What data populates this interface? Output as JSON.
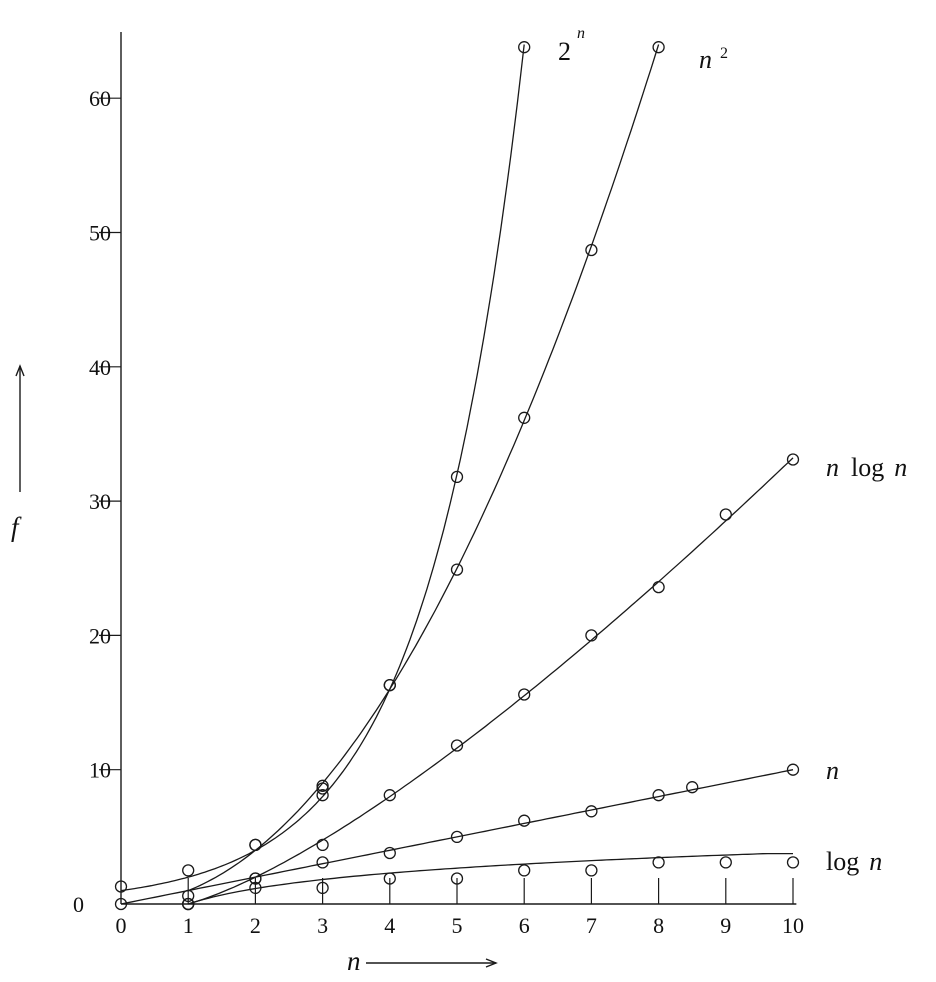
{
  "chart_data": {
    "type": "line",
    "title": "",
    "xlabel": "n",
    "ylabel": "f",
    "xlim": [
      0,
      10
    ],
    "ylim": [
      0,
      64
    ],
    "x_ticks": [
      "0",
      "1",
      "2",
      "3",
      "4",
      "5",
      "6",
      "7",
      "8",
      "9",
      "10"
    ],
    "y_ticks": [
      "0",
      "10",
      "20",
      "30",
      "40",
      "50",
      "60"
    ],
    "grid": false,
    "legend": "none",
    "series": [
      {
        "name": "2^n",
        "label_parts": [
          "2",
          "n"
        ],
        "curve_x": [
          0,
          1,
          2,
          3,
          4,
          5,
          6
        ],
        "points": [
          [
            0,
            1.3
          ],
          [
            1,
            2.5
          ],
          [
            2,
            4.4
          ],
          [
            3,
            8.6
          ],
          [
            3,
            8.1
          ],
          [
            4,
            16.3
          ],
          [
            5,
            31.8
          ],
          [
            6,
            63.8
          ]
        ]
      },
      {
        "name": "n^2",
        "label_parts": [
          "n",
          "2"
        ],
        "curve_x": [
          1,
          2,
          3,
          4,
          5,
          6,
          7,
          8
        ],
        "points": [
          [
            1,
            0
          ],
          [
            2,
            4.4
          ],
          [
            3,
            8.8
          ],
          [
            4,
            16.3
          ],
          [
            5,
            24.9
          ],
          [
            6,
            36.2
          ],
          [
            7,
            48.7
          ],
          [
            8,
            63.8
          ]
        ]
      },
      {
        "name": "n log n",
        "label_parts": [
          "n",
          "log",
          "n"
        ],
        "curve_x": [
          1,
          2,
          3,
          4,
          5,
          6,
          7,
          8,
          9,
          10
        ],
        "points": [
          [
            1,
            0
          ],
          [
            2,
            1.9
          ],
          [
            3,
            4.4
          ],
          [
            4,
            8.1
          ],
          [
            5,
            11.8
          ],
          [
            6,
            15.6
          ],
          [
            7,
            20.0
          ],
          [
            8,
            23.6
          ],
          [
            9,
            29.0
          ],
          [
            10,
            33.1
          ]
        ]
      },
      {
        "name": "n",
        "label_parts": [
          "n"
        ],
        "curve_x": [
          0,
          10
        ],
        "points": [
          [
            0,
            0
          ],
          [
            1,
            0.6
          ],
          [
            2,
            1.9
          ],
          [
            3,
            3.1
          ],
          [
            4,
            3.8
          ],
          [
            5,
            5.0
          ],
          [
            6,
            6.2
          ],
          [
            7,
            6.9
          ],
          [
            8,
            8.1
          ],
          [
            8.5,
            8.7
          ],
          [
            10,
            10.0
          ]
        ]
      },
      {
        "name": "log n",
        "label_parts": [
          "log",
          "n"
        ],
        "curve_x": [
          1,
          2,
          3,
          4,
          5,
          6,
          7,
          8,
          9,
          10
        ],
        "points": [
          [
            1,
            0
          ],
          [
            2,
            1.2
          ],
          [
            3,
            1.2
          ],
          [
            4,
            1.9
          ],
          [
            5,
            1.9
          ],
          [
            6,
            2.5
          ],
          [
            7,
            2.5
          ],
          [
            8,
            3.1
          ],
          [
            9,
            3.1
          ],
          [
            10,
            3.1
          ]
        ]
      }
    ]
  }
}
